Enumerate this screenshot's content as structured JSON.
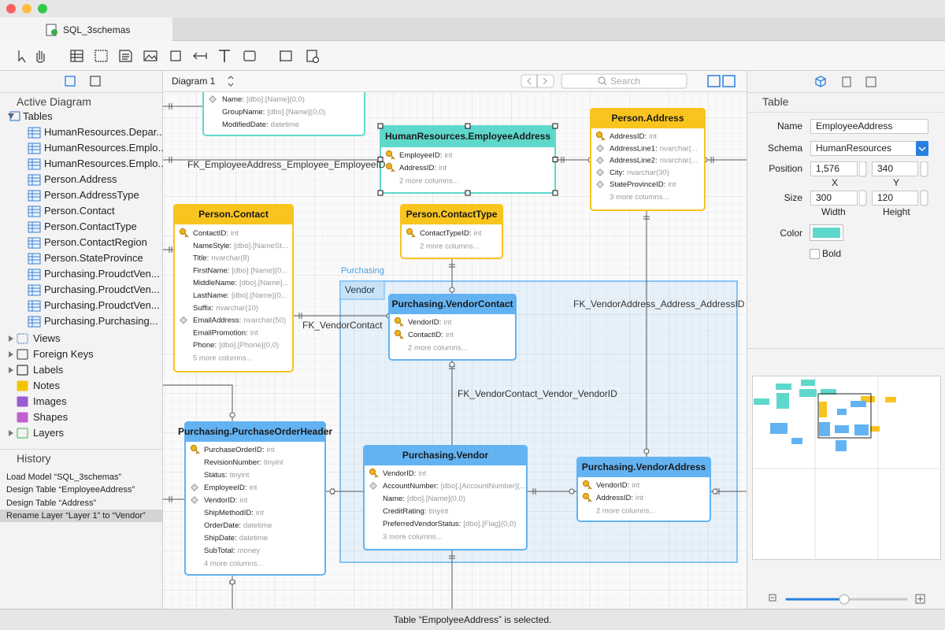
{
  "window": {
    "tab": "SQL_3schemas"
  },
  "sidebar": {
    "heading": "Active Diagram",
    "tables_label": "Tables",
    "tables": [
      "HumanResources.Depar...",
      "HumanResources.Emplo...",
      "HumanResources.Emplo...",
      "Person.Address",
      "Person.AddressType",
      "Person.Contact",
      "Person.ContactType",
      "Person.ContactRegion",
      "Person.StateProvince",
      "Purchasing.ProudctVen...",
      "Purchasing.ProudctVen...",
      "Purchasing.ProudctVen...",
      "Purchasing.Purchasing..."
    ],
    "groups": [
      "Views",
      "Foreign Keys",
      "Labels",
      "Notes",
      "Images",
      "Shapes",
      "Layers"
    ],
    "history_title": "History",
    "history": [
      "Load Model “SQL_3schemas”",
      "Design Table “EmployeeAddress”",
      "Design Table “Address”",
      "Rename Layer “Layer 1” to “Vendor”"
    ]
  },
  "diagram": {
    "name": "Diagram 1",
    "search": "Search",
    "layer_group": "Purchasing",
    "layer": "Vendor",
    "tables": [
      {
        "color": "#5fd8cc",
        "columns": [
          {
            "name": "Name:",
            "type": "[dbo].[Name](0,0)"
          },
          {
            "name": "GroupName:",
            "type": "[dbo].[Name](0,0)"
          },
          {
            "name": "ModifiedDate:",
            "type": "datetime"
          }
        ]
      },
      {
        "name": "HumanResources.EmployeeAddress",
        "color": "#5fd8cc",
        "columns": [
          {
            "name": "EmployeeID:",
            "type": "int"
          },
          {
            "name": "AddressID:",
            "type": "int"
          }
        ],
        "more": "2 more columns..."
      },
      {
        "name": "Person.Address",
        "color": "#f9c41e",
        "columns": [
          {
            "name": "AddressID:",
            "type": "int"
          },
          {
            "name": "AddressLine1:",
            "type": "nvarchar(..."
          },
          {
            "name": "AddressLine2:",
            "type": "nvarchar(..."
          },
          {
            "name": "City:",
            "type": "nvarchar(30)"
          },
          {
            "name": "StateProvinceID:",
            "type": "int"
          }
        ],
        "more": "3 more columns..."
      },
      {
        "name": "Person.Contact",
        "color": "#f9c41e",
        "columns": [
          {
            "name": "ContactID:",
            "type": "int"
          },
          {
            "name": "NameStyle:",
            "type": "[dbo].[NameSt..."
          },
          {
            "name": "Title:",
            "type": "nvarchar(8)"
          },
          {
            "name": "FirstName:",
            "type": "[dbo].[Name](0..."
          },
          {
            "name": "MiddleName:",
            "type": "[dbo].[Name]..."
          },
          {
            "name": "LastName:",
            "type": "[dbo].[Name](0..."
          },
          {
            "name": "Suffix:",
            "type": "nvarchar(10)"
          },
          {
            "name": "EmailAddress:",
            "type": "nvarchar(50)"
          },
          {
            "name": "EmailPromotion:",
            "type": "int"
          },
          {
            "name": "Phone:",
            "type": "[dbo].[Phone](0,0)"
          }
        ],
        "more": "5 more columns..."
      },
      {
        "name": "Person.ContactType",
        "color": "#f9c41e",
        "columns": [
          {
            "name": "ContactTypeID:",
            "type": "int"
          }
        ],
        "more": "2 more columns..."
      },
      {
        "name": "Purchasing.VendorContact",
        "color": "#63b3f3",
        "columns": [
          {
            "name": "VendorID:",
            "type": "int"
          },
          {
            "name": "ContactID:",
            "type": "int"
          }
        ],
        "more": "2 more columns..."
      },
      {
        "name": "Purchasing.PurchaseOrderHeader",
        "color": "#63b3f3",
        "columns": [
          {
            "name": "PurchaseOrderID:",
            "type": "int"
          },
          {
            "name": "RevisionNumber:",
            "type": "tinyint"
          },
          {
            "name": "Status:",
            "type": "tinyint"
          },
          {
            "name": "EmployeeID:",
            "type": "int"
          },
          {
            "name": "VendorID:",
            "type": "int"
          },
          {
            "name": "ShipMethodID:",
            "type": "int"
          },
          {
            "name": "OrderDate:",
            "type": "datetime"
          },
          {
            "name": "ShipDate:",
            "type": "datetime"
          },
          {
            "name": "SubTotal:",
            "type": "money"
          }
        ],
        "more": "4 more columns..."
      },
      {
        "name": "Purchasing.Vendor",
        "color": "#63b3f3",
        "columns": [
          {
            "name": "VendorID:",
            "type": "int"
          },
          {
            "name": "AccountNumber:",
            "type": "[dbo].[AccountNumber](..."
          },
          {
            "name": "Name:",
            "type": "[dbo].[Name](0,0)"
          },
          {
            "name": "CreditRating:",
            "type": "tinyint"
          },
          {
            "name": "PreferredVendorStatus:",
            "type": "[dbo].[Flag](0,0)"
          }
        ],
        "more": "3 more columns..."
      },
      {
        "name": "Purchasing.VendorAddress",
        "color": "#63b3f3",
        "columns": [
          {
            "name": "VendorID:",
            "type": "int"
          },
          {
            "name": "AddressID:",
            "type": "int"
          }
        ],
        "more": "2 more columns..."
      }
    ],
    "labels": [
      "FK_EmployeeAddress_Employee_EmployeeID",
      "FK_VendorContact",
      "FK_VendorAddress_Address_AddressID",
      "FK_VendorContact_Vendor_VendorID"
    ]
  },
  "inspector": {
    "title": "Table",
    "name_label": "Name",
    "name": "EmployeeAddress",
    "schema_label": "Schema",
    "schema": "HumanResources",
    "position_label": "Position",
    "x": "1,576",
    "y": "340",
    "x_label": "X",
    "y_label": "Y",
    "size_label": "Size",
    "width": "300",
    "height": "120",
    "width_label": "Width",
    "height_label": "Height",
    "color_label": "Color",
    "color": "#5fd8cc",
    "bold_label": "Bold"
  },
  "status": "Table “EmpolyeeAddress” is selected."
}
